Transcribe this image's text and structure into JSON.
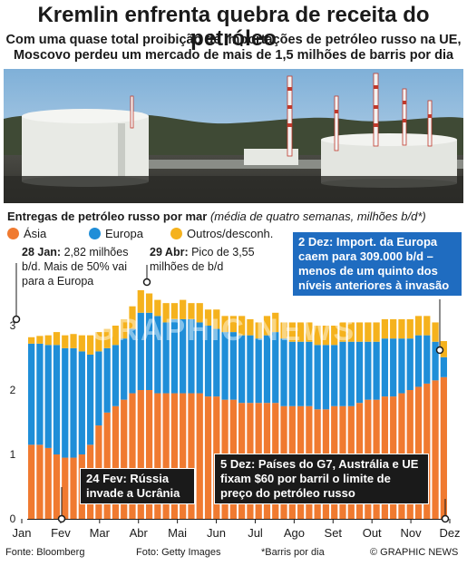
{
  "headline": "Kremlin enfrenta quebra de receita do petróleo",
  "subheadline": "Com uma quase total proibição de importações de petróleo russo na UE, Moscovo perdeu um mercado de mais de 1,5 milhões de barris por dia",
  "chart_title_main": "Entregas de petróleo russo por mar",
  "chart_title_sub": "(média de quatro semanas, milhões b/d*)",
  "watermark": "GRAPHIC NEWS",
  "colors": {
    "asia": "#f07a30",
    "europe": "#1f8ed8",
    "other": "#f5b21d",
    "blue_box": "#1f6cc0",
    "dark_box": "#1a1a1a"
  },
  "annotations": {
    "jan28_bold": "28 Jan:",
    "jan28_text": "2,82 milhões b/d. Mais de 50% vai para a Europa",
    "apr29_bold": "29 Abr:",
    "apr29_text": "Pico de 3,55 milhões de b/d",
    "dec2": "2 Dez: Import. da Europa caem para 309.000 b/d – menos de um quinto dos níveis anteriores à invasão",
    "feb24": "24 Fev: Rússia invade a Ucrânia",
    "dec5": "5 Dez: Países do G7, Austrália e UE fixam $60 por barril o limite de preço do petróleo russo"
  },
  "footer": {
    "source": "Fonte: Bloomberg",
    "photo": "Foto: Getty Images",
    "note": "*Barris por dia",
    "credit": "© GRAPHIC NEWS"
  },
  "chart_data": {
    "type": "bar",
    "stacked": true,
    "ylim": [
      0,
      4
    ],
    "yticks": [
      0,
      1,
      2,
      3
    ],
    "xlabels": [
      "Jan",
      "Fev",
      "Mar",
      "Abr",
      "Mai",
      "Jun",
      "Jul",
      "Ago",
      "Set",
      "Out",
      "Nov",
      "Dez"
    ],
    "grid": false,
    "series": [
      {
        "name": "Ásia",
        "color": "#f07a30",
        "values": [
          1.15,
          1.15,
          1.1,
          1.0,
          0.95,
          0.95,
          1.0,
          1.15,
          1.45,
          1.65,
          1.75,
          1.85,
          1.95,
          2.0,
          2.0,
          1.95,
          1.95,
          1.95,
          1.95,
          1.95,
          1.95,
          1.9,
          1.9,
          1.85,
          1.85,
          1.8,
          1.8,
          1.8,
          1.8,
          1.8,
          1.75,
          1.75,
          1.75,
          1.75,
          1.7,
          1.7,
          1.75,
          1.75,
          1.75,
          1.8,
          1.85,
          1.85,
          1.9,
          1.9,
          1.95,
          2.0,
          2.05,
          2.1,
          2.15,
          2.2
        ]
      },
      {
        "name": "Europa",
        "color": "#1f8ed8",
        "values": [
          1.57,
          1.57,
          1.6,
          1.7,
          1.7,
          1.7,
          1.6,
          1.4,
          1.15,
          1.0,
          0.95,
          0.95,
          1.0,
          1.2,
          1.2,
          1.2,
          1.1,
          1.15,
          1.15,
          1.15,
          1.1,
          1.1,
          1.05,
          1.05,
          1.05,
          1.05,
          1.05,
          1.0,
          1.05,
          1.1,
          1.05,
          1.0,
          1.0,
          1.0,
          1.0,
          1.0,
          0.95,
          1.0,
          1.0,
          0.95,
          0.9,
          0.9,
          0.9,
          0.9,
          0.85,
          0.8,
          0.8,
          0.75,
          0.6,
          0.31
        ]
      },
      {
        "name": "Outros/desconh.",
        "color": "#f5b21d",
        "values": [
          0.1,
          0.12,
          0.15,
          0.2,
          0.2,
          0.22,
          0.25,
          0.3,
          0.3,
          0.3,
          0.3,
          0.3,
          0.35,
          0.35,
          0.3,
          0.25,
          0.3,
          0.25,
          0.3,
          0.25,
          0.3,
          0.25,
          0.3,
          0.25,
          0.25,
          0.3,
          0.25,
          0.25,
          0.3,
          0.3,
          0.25,
          0.3,
          0.3,
          0.3,
          0.3,
          0.3,
          0.3,
          0.3,
          0.3,
          0.3,
          0.3,
          0.3,
          0.3,
          0.3,
          0.3,
          0.3,
          0.3,
          0.3,
          0.3,
          0.25
        ]
      }
    ]
  }
}
